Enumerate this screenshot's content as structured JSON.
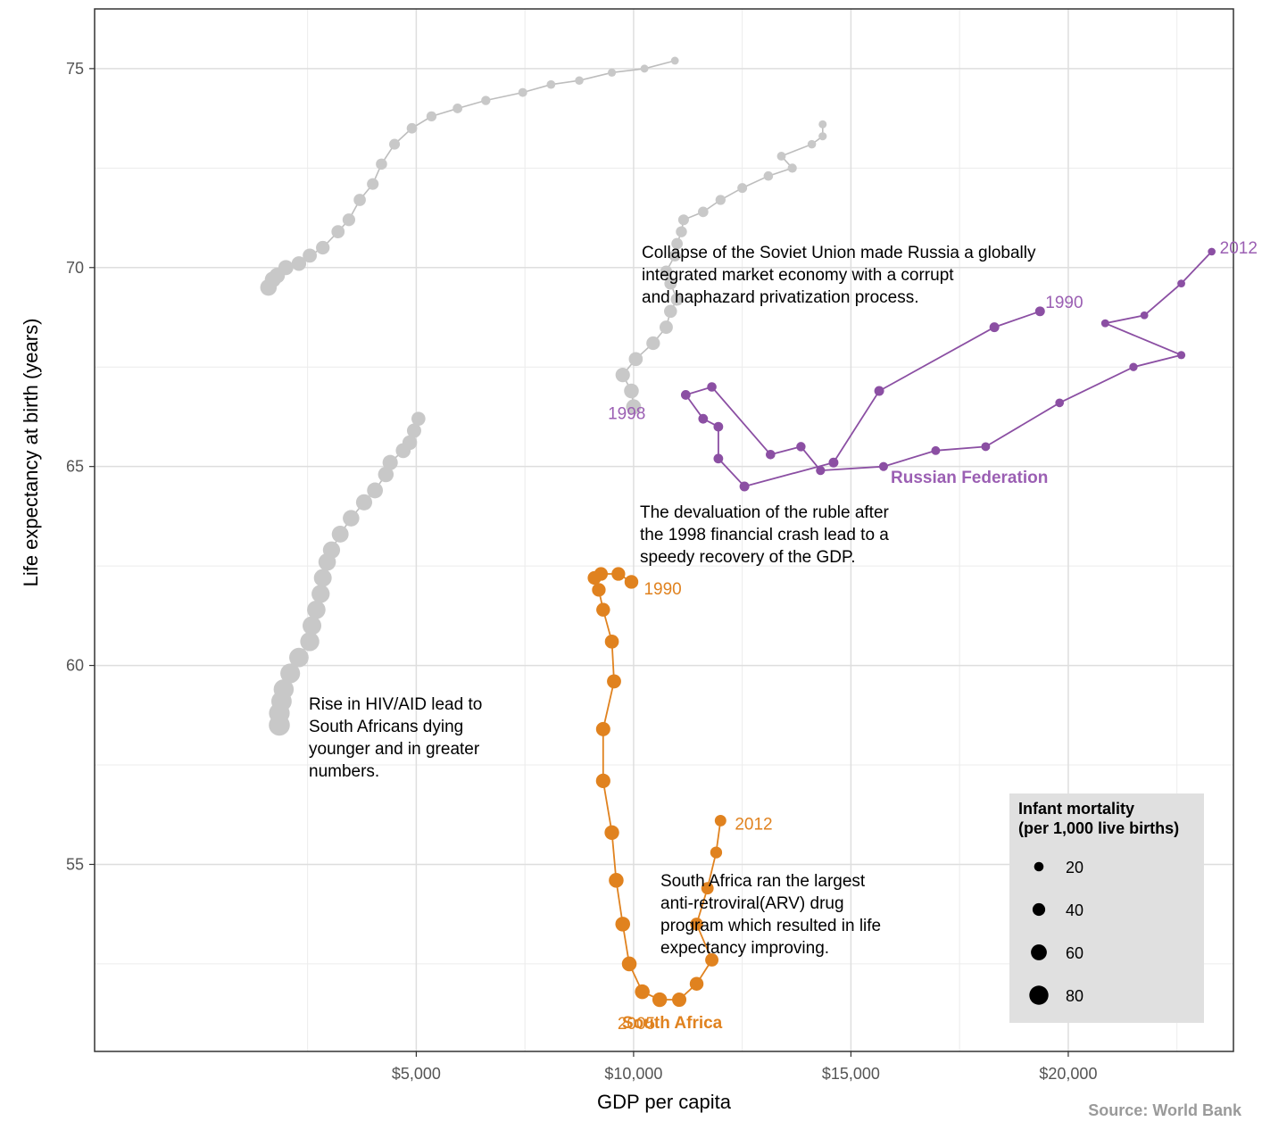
{
  "chart_data": {
    "type": "scatter",
    "xlabel": "GDP per capita",
    "ylabel": "Life expectancy at birth (years)",
    "xlim": [
      -2400,
      23800
    ],
    "ylim": [
      50.3,
      76.5
    ],
    "x_ticks": [
      5000,
      10000,
      15000,
      20000
    ],
    "x_tick_labels": [
      "$5,000",
      "$10,000",
      "$15,000",
      "$20,000"
    ],
    "y_ticks": [
      55,
      60,
      65,
      70,
      75
    ],
    "y_tick_labels": [
      "55",
      "60",
      "65",
      "70",
      "75"
    ],
    "grid": true,
    "size_variable": "Infant mortality",
    "colors": {
      "russia": "#8b4fa3",
      "south_africa": "#e0821f",
      "grey": "#c8c8c8",
      "line_grey": "#bdbdbd"
    },
    "series": [
      {
        "name": "Russian Federation",
        "color": "#8b4fa3",
        "points": [
          {
            "year": 1990,
            "x": 19350,
            "y": 68.9,
            "im": 22
          },
          {
            "year": 1991,
            "x": 18300,
            "y": 68.5,
            "im": 22
          },
          {
            "year": 1992,
            "x": 15650,
            "y": 66.9,
            "im": 22
          },
          {
            "year": 1993,
            "x": 14600,
            "y": 65.1,
            "im": 22
          },
          {
            "year": 1994,
            "x": 12550,
            "y": 64.5,
            "im": 22
          },
          {
            "year": 1995,
            "x": 11950,
            "y": 65.2,
            "im": 21
          },
          {
            "year": 1996,
            "x": 11950,
            "y": 66.0,
            "im": 21
          },
          {
            "year": 1997,
            "x": 11600,
            "y": 66.2,
            "im": 21
          },
          {
            "year": 1998,
            "x": 11200,
            "y": 66.8,
            "im": 21
          },
          {
            "year": 1999,
            "x": 11800,
            "y": 67.0,
            "im": 20
          },
          {
            "year": 2000,
            "x": 13150,
            "y": 65.3,
            "im": 20
          },
          {
            "year": 2001,
            "x": 13850,
            "y": 65.5,
            "im": 19
          },
          {
            "year": 2002,
            "x": 14300,
            "y": 64.9,
            "im": 18
          },
          {
            "year": 2003,
            "x": 15750,
            "y": 65.0,
            "im": 17
          },
          {
            "year": 2004,
            "x": 16950,
            "y": 65.4,
            "im": 16
          },
          {
            "year": 2005,
            "x": 18100,
            "y": 65.5,
            "im": 16
          },
          {
            "year": 2006,
            "x": 19800,
            "y": 66.6,
            "im": 15
          },
          {
            "year": 2007,
            "x": 21500,
            "y": 67.5,
            "im": 13
          },
          {
            "year": 2008,
            "x": 22600,
            "y": 67.8,
            "im": 12
          },
          {
            "year": 2009,
            "x": 20850,
            "y": 68.6,
            "im": 11
          },
          {
            "year": 2010,
            "x": 21750,
            "y": 68.8,
            "im": 10
          },
          {
            "year": 2011,
            "x": 22600,
            "y": 69.6,
            "im": 10
          },
          {
            "year": 2012,
            "x": 23300,
            "y": 70.4,
            "im": 9
          }
        ]
      },
      {
        "name": "South Africa",
        "color": "#e0821f",
        "points": [
          {
            "year": 1990,
            "x": 9950,
            "y": 62.1,
            "im": 47
          },
          {
            "year": 1991,
            "x": 9650,
            "y": 62.3,
            "im": 46
          },
          {
            "year": 1992,
            "x": 9250,
            "y": 62.3,
            "im": 46
          },
          {
            "year": 1993,
            "x": 9100,
            "y": 62.2,
            "im": 46
          },
          {
            "year": 1994,
            "x": 9200,
            "y": 61.9,
            "im": 46
          },
          {
            "year": 1995,
            "x": 9300,
            "y": 61.4,
            "im": 47
          },
          {
            "year": 1996,
            "x": 9500,
            "y": 60.6,
            "im": 48
          },
          {
            "year": 1997,
            "x": 9550,
            "y": 59.6,
            "im": 49
          },
          {
            "year": 1998,
            "x": 9300,
            "y": 58.4,
            "im": 50
          },
          {
            "year": 1999,
            "x": 9300,
            "y": 57.1,
            "im": 51
          },
          {
            "year": 2000,
            "x": 9500,
            "y": 55.8,
            "im": 52
          },
          {
            "year": 2001,
            "x": 9600,
            "y": 54.6,
            "im": 53
          },
          {
            "year": 2002,
            "x": 9750,
            "y": 53.5,
            "im": 53
          },
          {
            "year": 2003,
            "x": 9900,
            "y": 52.5,
            "im": 53
          },
          {
            "year": 2004,
            "x": 10200,
            "y": 51.8,
            "im": 53
          },
          {
            "year": 2005,
            "x": 10600,
            "y": 51.6,
            "im": 52
          },
          {
            "year": 2006,
            "x": 11050,
            "y": 51.6,
            "im": 50
          },
          {
            "year": 2007,
            "x": 11450,
            "y": 52.0,
            "im": 47
          },
          {
            "year": 2008,
            "x": 11800,
            "y": 52.6,
            "im": 44
          },
          {
            "year": 2009,
            "x": 11450,
            "y": 53.5,
            "im": 41
          },
          {
            "year": 2010,
            "x": 11700,
            "y": 54.4,
            "im": 38
          },
          {
            "year": 2011,
            "x": 11900,
            "y": 55.3,
            "im": 35
          },
          {
            "year": 2012,
            "x": 12000,
            "y": 56.1,
            "im": 33
          }
        ]
      },
      {
        "name": "",
        "color": "#c8c8c8",
        "points": [
          {
            "x": 1600,
            "y": 69.5,
            "im": 64
          },
          {
            "x": 1700,
            "y": 69.7,
            "im": 61
          },
          {
            "x": 1800,
            "y": 69.8,
            "im": 58
          },
          {
            "x": 2000,
            "y": 70.0,
            "im": 55
          },
          {
            "x": 2300,
            "y": 70.1,
            "im": 52
          },
          {
            "x": 2550,
            "y": 70.3,
            "im": 49
          },
          {
            "x": 2850,
            "y": 70.5,
            "im": 46
          },
          {
            "x": 3200,
            "y": 70.9,
            "im": 43
          },
          {
            "x": 3450,
            "y": 71.2,
            "im": 40
          },
          {
            "x": 3700,
            "y": 71.7,
            "im": 37
          },
          {
            "x": 4000,
            "y": 72.1,
            "im": 34
          },
          {
            "x": 4200,
            "y": 72.6,
            "im": 31
          },
          {
            "x": 4500,
            "y": 73.1,
            "im": 28
          },
          {
            "x": 4900,
            "y": 73.5,
            "im": 26
          },
          {
            "x": 5350,
            "y": 73.8,
            "im": 24
          },
          {
            "x": 5950,
            "y": 74.0,
            "im": 21
          },
          {
            "x": 6600,
            "y": 74.2,
            "im": 19
          },
          {
            "x": 7450,
            "y": 74.4,
            "im": 17
          },
          {
            "x": 8100,
            "y": 74.6,
            "im": 15
          },
          {
            "x": 8750,
            "y": 74.7,
            "im": 14
          },
          {
            "x": 9500,
            "y": 74.9,
            "im": 12
          },
          {
            "x": 10250,
            "y": 75.0,
            "im": 11
          },
          {
            "x": 10950,
            "y": 75.2,
            "im": 10
          }
        ]
      },
      {
        "name": "",
        "color": "#c8c8c8",
        "points": [
          {
            "x": 10000,
            "y": 66.5,
            "im": 55
          },
          {
            "x": 9950,
            "y": 66.9,
            "im": 53
          },
          {
            "x": 9750,
            "y": 67.3,
            "im": 51
          },
          {
            "x": 10050,
            "y": 67.7,
            "im": 48
          },
          {
            "x": 10450,
            "y": 68.1,
            "im": 46
          },
          {
            "x": 10750,
            "y": 68.5,
            "im": 44
          },
          {
            "x": 10850,
            "y": 68.9,
            "im": 42
          },
          {
            "x": 11000,
            "y": 69.2,
            "im": 40
          },
          {
            "x": 10850,
            "y": 69.6,
            "im": 38
          },
          {
            "x": 10750,
            "y": 69.9,
            "im": 36
          },
          {
            "x": 10950,
            "y": 70.3,
            "im": 34
          },
          {
            "x": 11000,
            "y": 70.6,
            "im": 32
          },
          {
            "x": 11100,
            "y": 70.9,
            "im": 30
          },
          {
            "x": 11150,
            "y": 71.2,
            "im": 28
          },
          {
            "x": 11600,
            "y": 71.4,
            "im": 26
          },
          {
            "x": 12000,
            "y": 71.7,
            "im": 24
          },
          {
            "x": 12500,
            "y": 72.0,
            "im": 22
          },
          {
            "x": 13100,
            "y": 72.3,
            "im": 20
          },
          {
            "x": 13650,
            "y": 72.5,
            "im": 18
          },
          {
            "x": 13400,
            "y": 72.8,
            "im": 16
          },
          {
            "x": 14100,
            "y": 73.1,
            "im": 14
          },
          {
            "x": 14350,
            "y": 73.3,
            "im": 12
          },
          {
            "x": 14350,
            "y": 73.6,
            "im": 11
          }
        ]
      },
      {
        "name": "",
        "color": "#c8c8c8",
        "points": [
          {
            "x": 1850,
            "y": 58.5,
            "im": 92
          },
          {
            "x": 1850,
            "y": 58.8,
            "im": 90
          },
          {
            "x": 1900,
            "y": 59.1,
            "im": 88
          },
          {
            "x": 1950,
            "y": 59.4,
            "im": 86
          },
          {
            "x": 2100,
            "y": 59.8,
            "im": 84
          },
          {
            "x": 2300,
            "y": 60.2,
            "im": 82
          },
          {
            "x": 2550,
            "y": 60.6,
            "im": 80
          },
          {
            "x": 2600,
            "y": 61.0,
            "im": 78
          },
          {
            "x": 2700,
            "y": 61.4,
            "im": 76
          },
          {
            "x": 2800,
            "y": 61.8,
            "im": 74
          },
          {
            "x": 2850,
            "y": 62.2,
            "im": 72
          },
          {
            "x": 2950,
            "y": 62.6,
            "im": 70
          },
          {
            "x": 3050,
            "y": 62.9,
            "im": 68
          },
          {
            "x": 3250,
            "y": 63.3,
            "im": 66
          },
          {
            "x": 3500,
            "y": 63.7,
            "im": 64
          },
          {
            "x": 3800,
            "y": 64.1,
            "im": 62
          },
          {
            "x": 4050,
            "y": 64.4,
            "im": 60
          },
          {
            "x": 4300,
            "y": 64.8,
            "im": 58
          },
          {
            "x": 4400,
            "y": 65.1,
            "im": 56
          },
          {
            "x": 4700,
            "y": 65.4,
            "im": 54
          },
          {
            "x": 4850,
            "y": 65.6,
            "im": 52
          },
          {
            "x": 4950,
            "y": 65.9,
            "im": 50
          },
          {
            "x": 5050,
            "y": 66.2,
            "im": 48
          }
        ]
      }
    ],
    "year_labels": [
      {
        "series": "Russian Federation",
        "text": "1990",
        "x": 19350,
        "y": 68.9
      },
      {
        "series": "Russian Federation",
        "text": "2012",
        "x": 23300,
        "y": 70.4
      },
      {
        "series": "Russian Federation",
        "text": "1998",
        "x": 11200,
        "y": 66.8
      },
      {
        "series": "South Africa",
        "text": "1990",
        "x": 9950,
        "y": 62.1
      },
      {
        "series": "South Africa",
        "text": "2012",
        "x": 12000,
        "y": 56.1
      },
      {
        "series": "South Africa",
        "text": "2005",
        "x": 10600,
        "y": 51.6
      }
    ],
    "annotations": [
      {
        "id": "soviet",
        "lines": [
          "Collapse of the Soviet Union made Russia a globally",
          "integrated market economy with a corrupt",
          "and haphazard privatization process."
        ]
      },
      {
        "id": "ruble",
        "lines": [
          "The devaluation of the ruble after",
          "the 1998 financial crash lead to a",
          "speedy recovery of the GDP."
        ]
      },
      {
        "id": "hiv",
        "lines": [
          "Rise in HIV/AID lead to",
          "South Africans dying",
          "younger and in greater",
          "numbers."
        ]
      },
      {
        "id": "arv",
        "lines": [
          "South Africa ran the largest",
          "anti-retroviral(ARV) drug",
          "program which resulted in life",
          "expectancy improving."
        ]
      }
    ],
    "legend": {
      "title_lines": [
        "Infant mortality",
        "(per 1,000 live births)"
      ],
      "items": [
        {
          "label": "20",
          "im": 20
        },
        {
          "label": "40",
          "im": 40
        },
        {
          "label": "60",
          "im": 60
        },
        {
          "label": "80",
          "im": 80
        }
      ]
    },
    "source": "Source: World Bank"
  }
}
